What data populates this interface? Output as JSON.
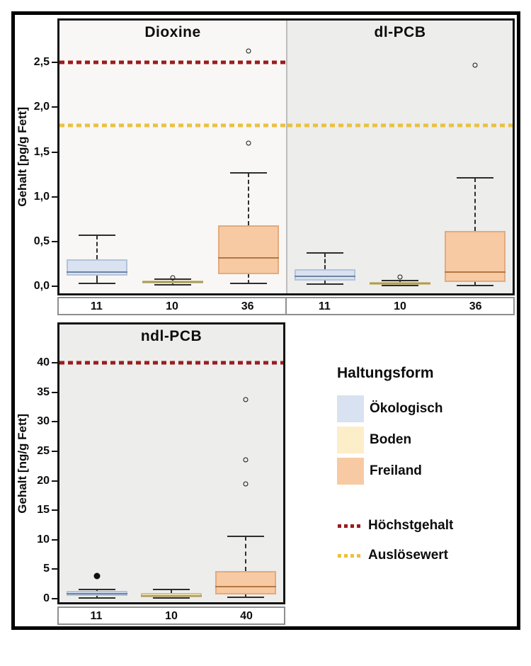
{
  "figure": {
    "background": "#ffffff",
    "frame_color": "#000000"
  },
  "colors": {
    "whisker": "#2e2e2e",
    "plot_border": "#141414",
    "strip_border": "#8f8f8f",
    "panel_divider": "#bdbdbd",
    "panel_bg": {
      "dioxine": "#f8f7f5",
      "dlpcb": "#ededeb",
      "ndlpcb": "#ededeb"
    },
    "hoechstgehalt": "#9b1c1d",
    "ausloesewert": "#e9c143",
    "box_styles": {
      "Ökologisch": {
        "fill": "#d8e2f1",
        "border": "#b4c3db",
        "median": "#6e85a3"
      },
      "Boden": {
        "fill": "#fdeeca",
        "border": "#d0c28c",
        "median": "#a89c60"
      },
      "Freiland": {
        "fill": "#f8caa3",
        "border": "#e2ab7e",
        "median": "#b17843"
      }
    }
  },
  "chart_data": [
    {
      "id": "dioxine",
      "type": "box",
      "title": "Dioxine",
      "ylabel": "Gehalt [pg/g Fett]",
      "ylim": [
        -0.08,
        2.97
      ],
      "grid": false,
      "yticks": [
        {
          "value": 0.0,
          "label": "0,0"
        },
        {
          "value": 0.5,
          "label": "0,5"
        },
        {
          "value": 1.0,
          "label": "1,0"
        },
        {
          "value": 1.5,
          "label": "1,5"
        },
        {
          "value": 2.0,
          "label": "2,0"
        },
        {
          "value": 2.5,
          "label": "2,5"
        }
      ],
      "categories": [
        "11",
        "10",
        "36"
      ],
      "reference_lines": [
        {
          "name": "Höchstgehalt",
          "value": 2.5,
          "color": "#9b1c1d"
        },
        {
          "name": "Auslösewert",
          "value": 1.8,
          "color": "#e9c143"
        }
      ],
      "groups": [
        {
          "n": "11",
          "haltungsform": "Ökologisch",
          "whisker_low": 0.03,
          "q1": 0.12,
          "median": 0.16,
          "q3": 0.3,
          "whisker_high": 0.57,
          "outliers": [],
          "outlier_style": "open"
        },
        {
          "n": "10",
          "haltungsform": "Boden",
          "whisker_low": 0.015,
          "q1": 0.03,
          "median": 0.05,
          "q3": 0.065,
          "whisker_high": 0.075,
          "outliers": [
            0.095
          ],
          "outlier_style": "open"
        },
        {
          "n": "36",
          "haltungsform": "Freiland",
          "whisker_low": 0.03,
          "q1": 0.13,
          "median": 0.32,
          "q3": 0.68,
          "whisker_high": 1.27,
          "outliers": [
            1.6,
            2.63
          ],
          "outlier_style": "open"
        }
      ]
    },
    {
      "id": "dlpcb",
      "type": "box",
      "title": "dl-PCB",
      "ylabel": "Gehalt [pg/g Fett]",
      "ylim": [
        -0.08,
        2.97
      ],
      "grid": false,
      "yticks": [],
      "categories": [
        "11",
        "10",
        "36"
      ],
      "reference_lines": [
        {
          "name": "Auslösewert",
          "value": 1.8,
          "color": "#e9c143"
        }
      ],
      "groups": [
        {
          "n": "11",
          "haltungsform": "Ökologisch",
          "whisker_low": 0.02,
          "q1": 0.06,
          "median": 0.11,
          "q3": 0.19,
          "whisker_high": 0.37,
          "outliers": [],
          "outlier_style": "open"
        },
        {
          "n": "10",
          "haltungsform": "Boden",
          "whisker_low": 0.005,
          "q1": 0.015,
          "median": 0.03,
          "q3": 0.045,
          "whisker_high": 0.065,
          "outliers": [
            0.105
          ],
          "outlier_style": "open"
        },
        {
          "n": "36",
          "haltungsform": "Freiland",
          "whisker_low": 0.01,
          "q1": 0.05,
          "median": 0.16,
          "q3": 0.62,
          "whisker_high": 1.21,
          "outliers": [
            2.47
          ],
          "outlier_style": "open"
        }
      ]
    },
    {
      "id": "ndlpcb",
      "type": "box",
      "title": "ndl-PCB",
      "ylabel": "Gehalt [ng/g Fett]",
      "ylim": [
        -0.6,
        46.5
      ],
      "grid": false,
      "yticks": [
        {
          "value": 0,
          "label": "0"
        },
        {
          "value": 5,
          "label": "5"
        },
        {
          "value": 10,
          "label": "10"
        },
        {
          "value": 15,
          "label": "15"
        },
        {
          "value": 20,
          "label": "20"
        },
        {
          "value": 25,
          "label": "25"
        },
        {
          "value": 30,
          "label": "30"
        },
        {
          "value": 35,
          "label": "35"
        },
        {
          "value": 40,
          "label": "40"
        }
      ],
      "categories": [
        "11",
        "10",
        "40"
      ],
      "reference_lines": [
        {
          "name": "Höchstgehalt",
          "value": 40,
          "color": "#9b1c1d"
        }
      ],
      "groups": [
        {
          "n": "11",
          "haltungsform": "Ökologisch",
          "whisker_low": 0.15,
          "q1": 0.5,
          "median": 0.85,
          "q3": 1.3,
          "whisker_high": 1.6,
          "outliers": [
            3.8
          ],
          "outlier_style": "filled"
        },
        {
          "n": "10",
          "haltungsform": "Boden",
          "whisker_low": 0.1,
          "q1": 0.25,
          "median": 0.45,
          "q3": 1.0,
          "whisker_high": 1.6,
          "outliers": [],
          "outlier_style": "open"
        },
        {
          "n": "40",
          "haltungsform": "Freiland",
          "whisker_low": 0.2,
          "q1": 0.7,
          "median": 2.0,
          "q3": 4.7,
          "whisker_high": 10.6,
          "outliers": [
            19.5,
            23.6,
            33.8
          ],
          "outlier_style": "open"
        }
      ]
    }
  ],
  "legend": {
    "title": "Haltungsform",
    "items": [
      {
        "label": "Ökologisch",
        "color": "#d8e2f1"
      },
      {
        "label": "Boden",
        "color": "#fdeeca"
      },
      {
        "label": "Freiland",
        "color": "#f8caa3"
      }
    ],
    "lines": [
      {
        "label": "Höchstgehalt",
        "color": "#9b1c1d"
      },
      {
        "label": "Auslösewert",
        "color": "#e9c143"
      }
    ]
  }
}
